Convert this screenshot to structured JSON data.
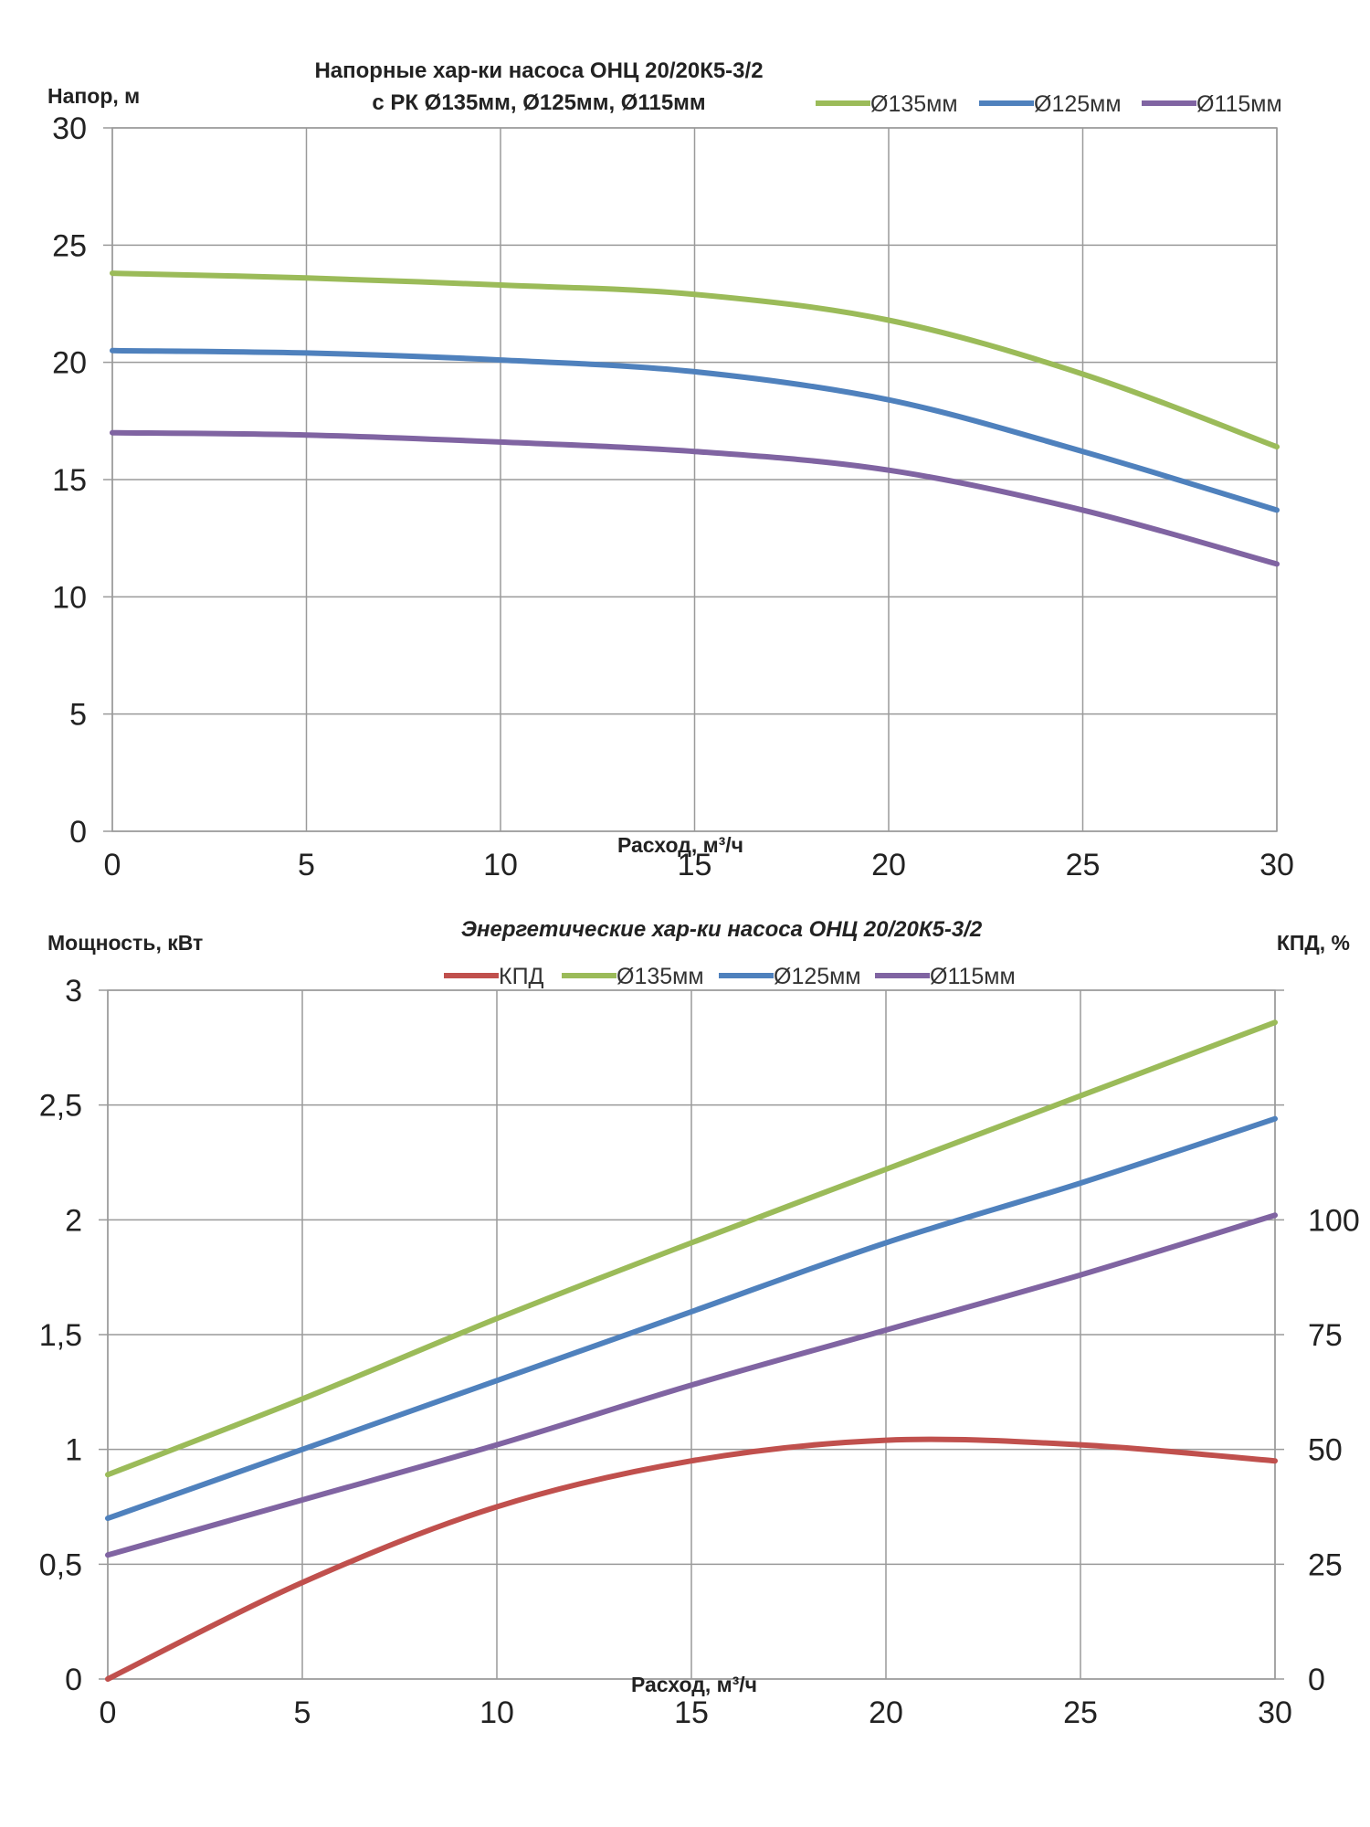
{
  "chart_data": [
    {
      "type": "line",
      "title": "Напорные хар-ки насоса ОНЦ 20/20К5-3/2",
      "subtitle": "с РК Ø135мм, Ø125мм, Ø115мм",
      "xlabel": "Расход, м³/ч",
      "ylabel": "Напор, м",
      "xlim": [
        0,
        30
      ],
      "ylim": [
        0,
        30
      ],
      "xticks": [
        "0",
        "5",
        "10",
        "15",
        "20",
        "25",
        "30"
      ],
      "yticks": [
        "0",
        "5",
        "10",
        "15",
        "20",
        "25",
        "30"
      ],
      "grid": true,
      "legend_position": "top-right",
      "x": [
        0,
        5,
        10,
        15,
        20,
        25,
        30
      ],
      "series": [
        {
          "name": "Ø135мм",
          "color": "#9bbb59",
          "values": [
            23.8,
            23.6,
            23.3,
            22.9,
            21.8,
            19.5,
            16.4
          ]
        },
        {
          "name": "Ø125мм",
          "color": "#4f81bd",
          "values": [
            20.5,
            20.4,
            20.1,
            19.6,
            18.4,
            16.2,
            13.7
          ]
        },
        {
          "name": "Ø115мм",
          "color": "#8064a2",
          "values": [
            17.0,
            16.9,
            16.6,
            16.2,
            15.4,
            13.7,
            11.4
          ]
        }
      ]
    },
    {
      "type": "line",
      "title": "Энергетические хар-ки насоса ОНЦ 20/20К5-3/2",
      "xlabel": "Расход, м³/ч",
      "ylabel": "Мощность, кВт",
      "y2label": "КПД, %",
      "xlim": [
        0,
        30
      ],
      "ylim": [
        0,
        3
      ],
      "y2lim": [
        0,
        150
      ],
      "xticks": [
        "0",
        "5",
        "10",
        "15",
        "20",
        "25",
        "30"
      ],
      "yticks": [
        "0",
        "0,5",
        "1",
        "1,5",
        "2",
        "2,5",
        "3"
      ],
      "y2ticks": [
        "0",
        "25",
        "50",
        "75",
        "100"
      ],
      "grid": true,
      "legend_position": "top-center",
      "x": [
        0,
        5,
        10,
        15,
        20,
        25,
        30
      ],
      "series": [
        {
          "name": "КПД",
          "axis": "right",
          "color": "#c0504d",
          "values": [
            0,
            21,
            37.5,
            47.5,
            52,
            51,
            47.5
          ]
        },
        {
          "name": "Ø135мм",
          "axis": "left",
          "color": "#9bbb59",
          "values": [
            0.89,
            1.22,
            1.57,
            1.9,
            2.22,
            2.54,
            2.86
          ]
        },
        {
          "name": "Ø125мм",
          "axis": "left",
          "color": "#4f81bd",
          "values": [
            0.7,
            1.0,
            1.3,
            1.6,
            1.9,
            2.16,
            2.44
          ]
        },
        {
          "name": "Ø115мм",
          "axis": "left",
          "color": "#8064a2",
          "values": [
            0.54,
            0.78,
            1.02,
            1.28,
            1.52,
            1.76,
            2.02
          ]
        }
      ]
    }
  ]
}
